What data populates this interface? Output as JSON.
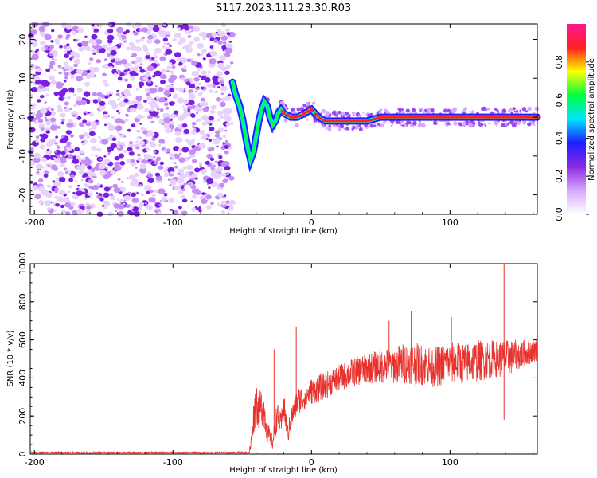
{
  "title": "S117.2023.111.23.30.R03",
  "chart_data": [
    {
      "type": "heatmap",
      "xlabel": "Height of straight line (km)",
      "ylabel": "Frequency (Hz)",
      "xlim": [
        -203,
        163
      ],
      "ylim": [
        -25,
        24
      ],
      "x_ticks": [
        -200,
        -100,
        0,
        100
      ],
      "y_ticks": [
        -20,
        -10,
        0,
        10,
        20
      ],
      "noise_region_x": [
        -203,
        -57
      ],
      "signal_track": {
        "x": [
          -57,
          -55,
          -52,
          -50,
          -48,
          -46,
          -44,
          -42,
          -40,
          -38,
          -36,
          -34,
          -32,
          -30,
          -28,
          -26,
          -24,
          -22,
          -20,
          -15,
          -10,
          -5,
          0,
          5,
          10,
          20,
          30,
          40,
          50,
          60,
          80,
          100,
          120,
          140,
          160
        ],
        "y": [
          9,
          6,
          3,
          0,
          -4,
          -8,
          -11,
          -9,
          -5,
          -1,
          2,
          4,
          3,
          0,
          -2,
          -1,
          1,
          2,
          1,
          0,
          0,
          1,
          2,
          0,
          -1,
          -1,
          -1,
          -1,
          0,
          0,
          0,
          0,
          0,
          0,
          0
        ]
      },
      "colorbar": {
        "label": "Normalized spectral amplitude",
        "range": [
          0,
          1
        ],
        "ticks": [
          "0.0",
          "0.2",
          "0.4",
          "0.6",
          "0.8"
        ],
        "colors": [
          "#ffffff",
          "#d6a8ff",
          "#8a2be2",
          "#1e1eff",
          "#00e5ff",
          "#00ff40",
          "#ffff00",
          "#ff2020",
          "#ff1493"
        ]
      }
    },
    {
      "type": "line",
      "xlabel": "Height of straight line (km)",
      "ylabel": "SNR (10 * v/v)",
      "xlim": [
        -203,
        163
      ],
      "ylim": [
        0,
        1000
      ],
      "x_ticks": [
        -200,
        -100,
        0,
        100
      ],
      "y_ticks": [
        0,
        200,
        400,
        600,
        800,
        1000
      ],
      "color": "#e8322d",
      "envelope": {
        "x": [
          -203,
          -45,
          -44,
          -42,
          -40,
          -38,
          -35,
          -32,
          -30,
          -28,
          -25,
          -22,
          -20,
          -17,
          -15,
          -10,
          -5,
          0,
          10,
          20,
          30,
          40,
          50,
          60,
          70,
          80,
          90,
          100,
          110,
          120,
          130,
          140,
          150,
          163
        ],
        "y": [
          8,
          8,
          40,
          180,
          280,
          230,
          260,
          120,
          80,
          60,
          200,
          150,
          250,
          100,
          180,
          280,
          300,
          330,
          360,
          400,
          430,
          450,
          460,
          470,
          480,
          470,
          460,
          480,
          480,
          490,
          500,
          500,
          520,
          550
        ],
        "spread": [
          4,
          4,
          40,
          80,
          120,
          100,
          110,
          60,
          50,
          40,
          80,
          60,
          80,
          50,
          60,
          70,
          70,
          70,
          70,
          70,
          75,
          80,
          90,
          100,
          110,
          110,
          110,
          110,
          110,
          110,
          100,
          100,
          80,
          60
        ]
      },
      "spikes": [
        {
          "x": -27,
          "y": 550
        },
        {
          "x": -11,
          "y": 670
        },
        {
          "x": 56,
          "y": 700
        },
        {
          "x": 72,
          "y": 750
        },
        {
          "x": 101,
          "y": 720
        },
        {
          "x": 139,
          "y": 1000
        },
        {
          "x": 139,
          "y": 180
        }
      ]
    }
  ]
}
